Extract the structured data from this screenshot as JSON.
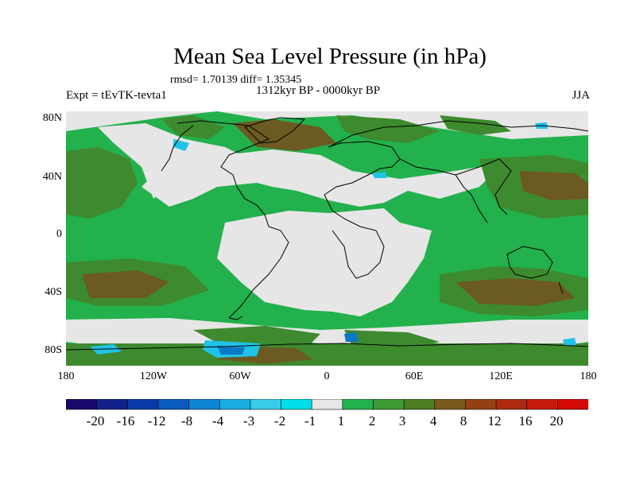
{
  "title": "Mean Sea Level Pressure (in hPa)",
  "stats": "rmsd= 1.70139 diff= 1.35345",
  "period": "1312kyr BP - 0000kyr BP",
  "experiment": "Expt = tEvTK-tevta1",
  "season": "JJA",
  "lat_ticks": [
    "80N",
    "40N",
    "0",
    "40S",
    "80S"
  ],
  "lon_ticks": [
    "180",
    "120W",
    "60W",
    "0",
    "60E",
    "120E",
    "180"
  ],
  "colorbar": {
    "labels": [
      "-20",
      "-16",
      "-12",
      "-8",
      "-4",
      "-3",
      "-2",
      "-1",
      "1",
      "2",
      "3",
      "4",
      "8",
      "12",
      "16",
      "20"
    ],
    "colors": [
      "#1a0a6b",
      "#13228a",
      "#0a3aa8",
      "#0b5cc0",
      "#0c86d4",
      "#19aee2",
      "#38cce8",
      "#00dfe8",
      "#e6e6e6",
      "#22b14c",
      "#3d9a35",
      "#4f7d22",
      "#7a5a1c",
      "#944015",
      "#ad2a10",
      "#c81a0c",
      "#d40a06"
    ]
  },
  "palette": {
    "neutral": "#e6e6e6",
    "green": "#22b14c",
    "olive": "#3e8a2e",
    "brown": "#6b5a22",
    "cyan": "#1fc3e8",
    "blue": "#0b78c8"
  }
}
